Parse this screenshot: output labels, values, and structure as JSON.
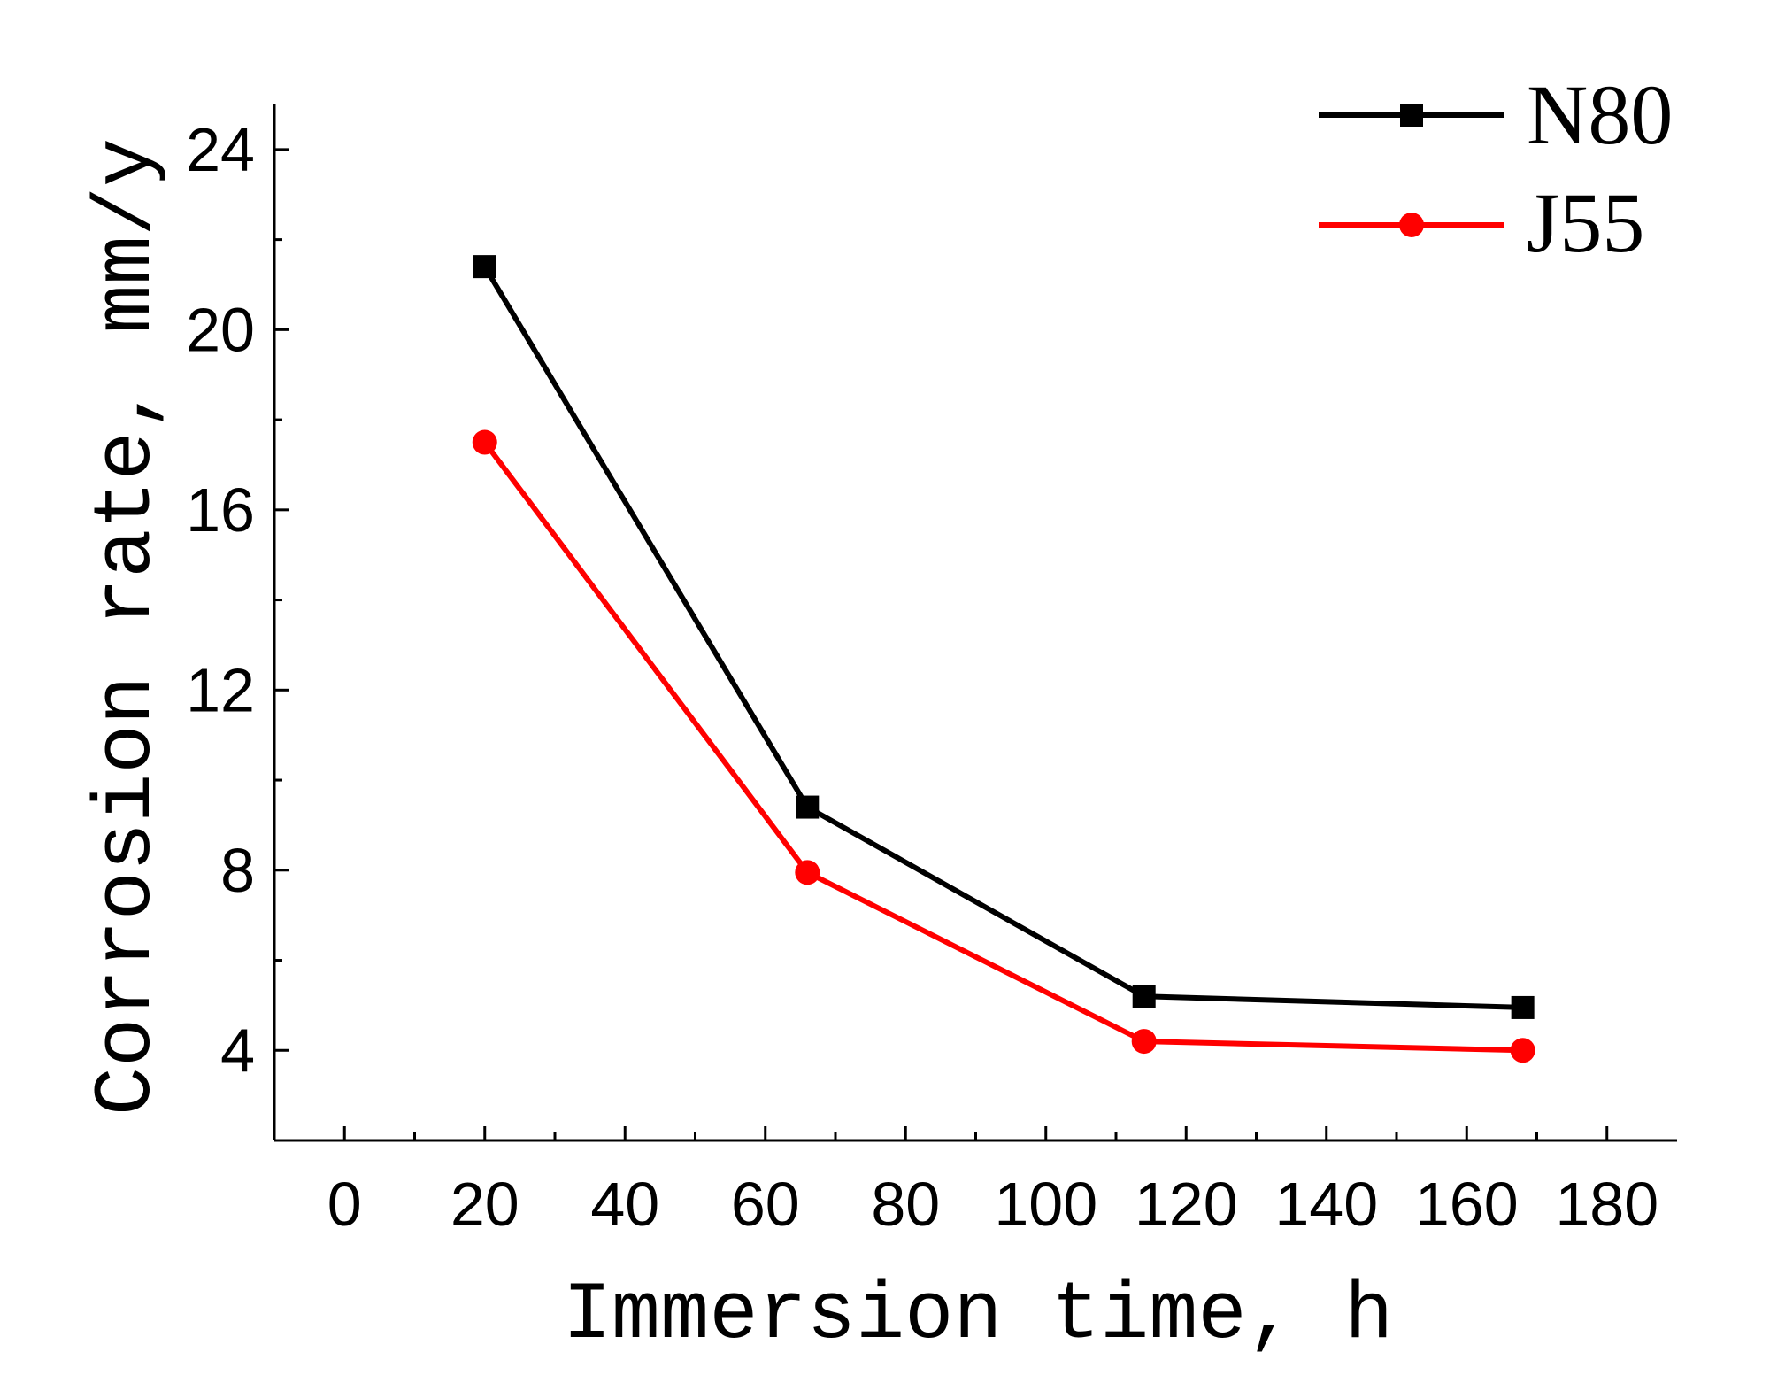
{
  "chart_data": {
    "type": "line",
    "title": "",
    "xlabel": "Immersion time, h",
    "ylabel": "Corrosion rate, mm/y",
    "xlim": [
      -10,
      190
    ],
    "ylim": [
      2,
      25
    ],
    "x_ticks": [
      0,
      20,
      40,
      60,
      80,
      100,
      120,
      140,
      160,
      180
    ],
    "x_tick_labels": [
      "0",
      "20",
      "40",
      "60",
      "80",
      "100",
      "120",
      "140",
      "160",
      "180"
    ],
    "y_ticks": [
      4,
      8,
      12,
      16,
      20,
      24
    ],
    "y_tick_labels": [
      "4",
      "8",
      "12",
      "16",
      "20",
      "24"
    ],
    "grid": false,
    "legend_position": "top-right",
    "series": [
      {
        "name": "N80",
        "color": "#000000",
        "marker": "square",
        "x": [
          20,
          66,
          114,
          168
        ],
        "values": [
          21.4,
          9.4,
          5.2,
          4.95
        ]
      },
      {
        "name": "J55",
        "color": "#ff0000",
        "marker": "circle",
        "x": [
          20,
          66,
          114,
          168
        ],
        "values": [
          17.5,
          7.95,
          4.2,
          4.0
        ]
      }
    ]
  }
}
